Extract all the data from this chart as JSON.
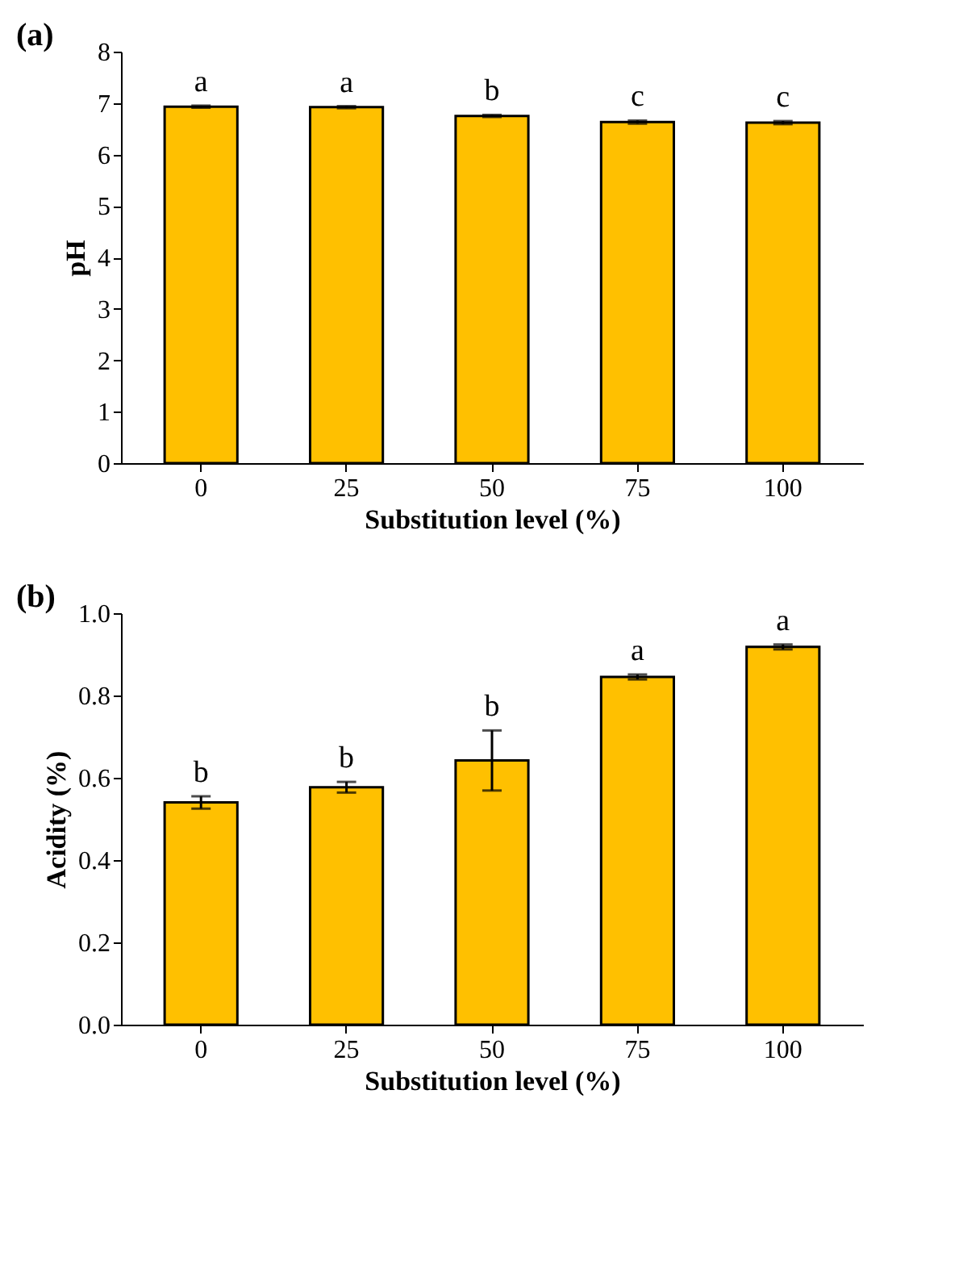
{
  "chart_data": [
    {
      "type": "bar",
      "title": "(a)",
      "xlabel": "Substitution level (%)",
      "ylabel": "pH",
      "categories": [
        "0",
        "25",
        "50",
        "75",
        "100"
      ],
      "series": [
        {
          "color": "#ffc000",
          "values": [
            6.93,
            6.92,
            6.75,
            6.63,
            6.62
          ],
          "errors": [
            0.02,
            0.02,
            0.02,
            0.03,
            0.03
          ]
        }
      ],
      "ylim": [
        0,
        8
      ],
      "yticks": [
        0,
        1,
        2,
        3,
        4,
        5,
        6,
        7,
        8
      ],
      "grid": false,
      "annotations": [
        {
          "text": "a",
          "x": "0",
          "y": 6.95
        },
        {
          "text": "a",
          "x": "25",
          "y": 6.94
        },
        {
          "text": "b",
          "x": "50",
          "y": 6.77
        },
        {
          "text": "c",
          "x": "75",
          "y": 6.66
        },
        {
          "text": "c",
          "x": "100",
          "y": 6.65
        }
      ]
    },
    {
      "type": "bar",
      "title": "(b)",
      "xlabel": "Substitution level (%)",
      "ylabel": "Acidity (%)",
      "categories": [
        "0",
        "25",
        "50",
        "75",
        "100"
      ],
      "series": [
        {
          "color": "#ffc000",
          "values": [
            0.54,
            0.577,
            0.642,
            0.845,
            0.918
          ],
          "errors": [
            0.015,
            0.013,
            0.073,
            0.006,
            0.006
          ]
        }
      ],
      "ylim": [
        0,
        1
      ],
      "yticks": [
        {
          "value": 0,
          "label": "0.0"
        },
        {
          "value": 0.2,
          "label": "0.2"
        },
        {
          "value": 0.4,
          "label": "0.4"
        },
        {
          "value": 0.6,
          "label": "0.6"
        },
        {
          "value": 0.8,
          "label": "0.8"
        },
        {
          "value": 1,
          "label": "1.0"
        }
      ],
      "grid": false,
      "annotations": [
        {
          "text": "b",
          "x": "0",
          "y": 0.555
        },
        {
          "text": "b",
          "x": "25",
          "y": 0.59
        },
        {
          "text": "b",
          "x": "50",
          "y": 0.715
        },
        {
          "text": "a",
          "x": "75",
          "y": 0.851
        },
        {
          "text": "a",
          "x": "100",
          "y": 0.924
        }
      ]
    }
  ]
}
